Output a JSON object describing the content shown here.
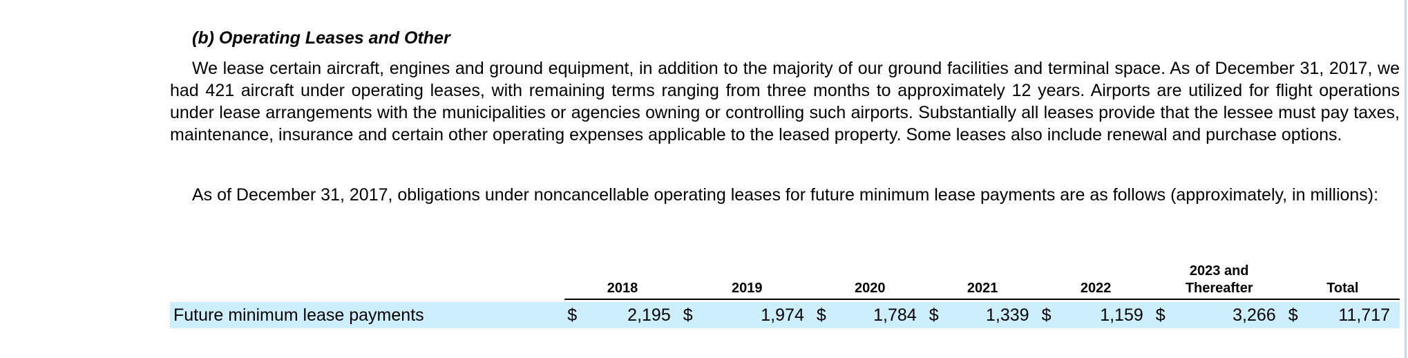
{
  "section": {
    "heading": "(b) Operating Leases and Other",
    "paragraph1": "We lease certain aircraft, engines and ground equipment, in addition to the majority of our ground facilities and terminal space. As of December 31, 2017, we had 421 aircraft under operating leases, with remaining terms ranging from three months to approximately 12 years. Airports are utilized for flight operations under lease arrangements with the municipalities or agencies owning or controlling such airports. Substantially all leases provide that the lessee must pay taxes, maintenance, insurance and certain other operating expenses applicable to the leased property. Some leases also include renewal and purchase options.",
    "paragraph2": "As of December 31, 2017, obligations under noncancellable operating leases for future minimum lease payments are as follows (approximately, in millions):"
  },
  "table": {
    "columns": [
      "2018",
      "2019",
      "2020",
      "2021",
      "2022",
      "2023 and Thereafter",
      "Total"
    ],
    "column_line1": [
      "",
      "",
      "",
      "",
      "",
      "2023 and",
      ""
    ],
    "column_line2": [
      "2018",
      "2019",
      "2020",
      "2021",
      "2022",
      "Thereafter",
      "Total"
    ],
    "row_label": "Future minimum lease payments",
    "currency": "$",
    "values": [
      "2,195",
      "1,974",
      "1,784",
      "1,339",
      "1,159",
      "3,266",
      "11,717"
    ]
  },
  "colors": {
    "row_highlight": "#cdeefc",
    "right_rule": "#c9d4f2"
  }
}
